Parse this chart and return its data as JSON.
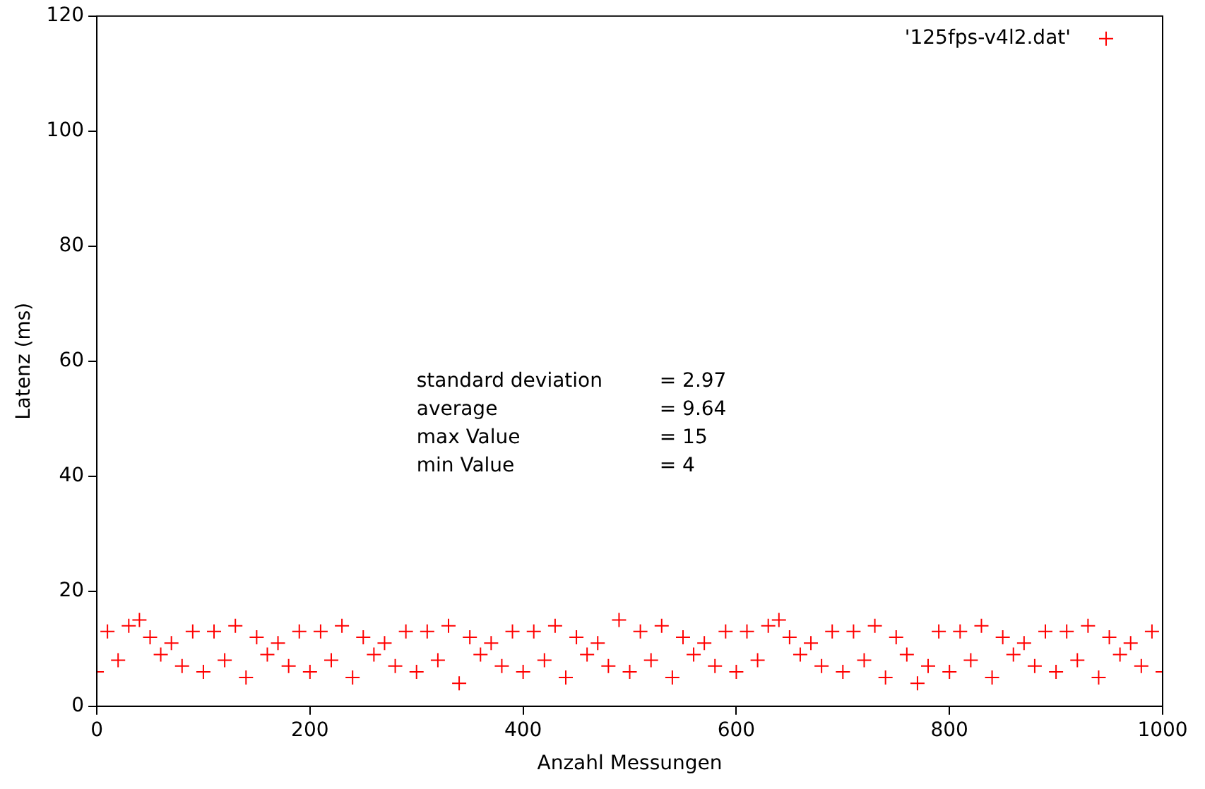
{
  "chart_data": {
    "type": "scatter",
    "xlabel": "Anzahl Messungen",
    "ylabel": "Latenz (ms)",
    "x": [
      0,
      10,
      20,
      30,
      40,
      50,
      60,
      70,
      80,
      90,
      100,
      110,
      120,
      130,
      140,
      150,
      160,
      170,
      180,
      190,
      200,
      210,
      220,
      230,
      240,
      250,
      260,
      270,
      280,
      290,
      300,
      310,
      320,
      330,
      340,
      350,
      360,
      370,
      380,
      390,
      400,
      410,
      420,
      430,
      440,
      450,
      460,
      470,
      480,
      490,
      500,
      510,
      520,
      530,
      540,
      550,
      560,
      570,
      580,
      590,
      600,
      610,
      620,
      630,
      640,
      650,
      660,
      670,
      680,
      690,
      700,
      710,
      720,
      730,
      740,
      750,
      760,
      770,
      780,
      790,
      800,
      810,
      820,
      830,
      840,
      850,
      860,
      870,
      880,
      890,
      900,
      910,
      920,
      930,
      940,
      950,
      960,
      970,
      980,
      990,
      1000
    ],
    "series": [
      {
        "name": "'125fps-v4l2.dat'",
        "color": "#ff0000",
        "values": [
          6,
          13,
          8,
          14,
          15,
          12,
          9,
          11,
          7,
          13,
          6,
          13,
          8,
          14,
          5,
          12,
          9,
          11,
          7,
          13,
          6,
          13,
          8,
          14,
          5,
          12,
          9,
          11,
          7,
          13,
          6,
          13,
          8,
          14,
          4,
          12,
          9,
          11,
          7,
          13,
          6,
          13,
          8,
          14,
          5,
          12,
          9,
          11,
          7,
          15,
          6,
          13,
          8,
          14,
          5,
          12,
          9,
          11,
          7,
          13,
          6,
          13,
          8,
          14,
          15,
          12,
          9,
          11,
          7,
          13,
          6,
          13,
          8,
          14,
          5,
          12,
          9,
          4,
          7,
          13,
          6,
          13,
          8,
          14,
          5,
          12,
          9,
          11,
          7,
          13,
          6,
          13,
          8,
          14,
          5,
          12,
          9,
          11,
          7,
          13,
          6
        ]
      }
    ],
    "xlim": [
      0,
      1000
    ],
    "xticks": [
      0,
      200,
      400,
      600,
      800,
      1000
    ],
    "ylim": [
      0,
      120
    ],
    "yticks": [
      0,
      20,
      40,
      60,
      80,
      100,
      120
    ],
    "marker": "cross",
    "legend": "top right",
    "grid": false,
    "annotations": [
      "standard deviation = 2.97",
      "average = 9.64",
      "max Value = 15",
      "min Value = 4"
    ]
  }
}
